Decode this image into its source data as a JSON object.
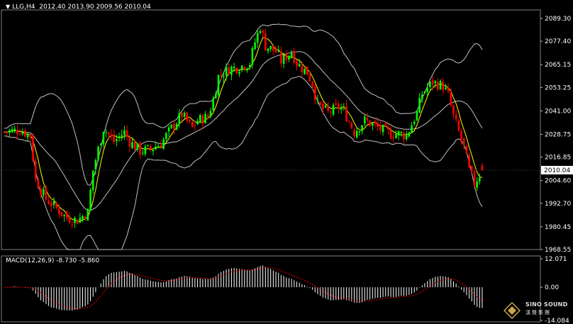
{
  "header": {
    "symbol": "LLG,H4",
    "open": "2012.40",
    "high": "2013.90",
    "low": "2009.56",
    "close": "2010.04"
  },
  "macd_header": {
    "label": "MACD(12,26,9)",
    "macd": "-8.730",
    "signal": "-5.860"
  },
  "logo": {
    "name": "SINO SOUND",
    "sub": "漢聲集團"
  },
  "colors": {
    "background": "#000000",
    "bull": "#00ff00",
    "bear": "#ff0000",
    "ma": "#ffff00",
    "band": "#c0c0c0",
    "signal": "#ff0000",
    "hist": "#ffffff"
  },
  "chart_data": [
    {
      "type": "candlestick",
      "title": "LLG,H4",
      "indicators": [
        "Bollinger Bands",
        "Moving Average"
      ],
      "y_ticks": [
        2089.3,
        2077.4,
        2065.15,
        2053.25,
        2041.0,
        2028.75,
        2016.85,
        2004.6,
        1992.7,
        1980.45,
        1968.55
      ],
      "y_tick_labels": [
        "2089.30",
        "2077.40",
        "2065.15",
        "2053.25",
        "2041.00",
        "2028.75",
        "2016.85",
        "2004.60",
        "1992.70",
        "1980.45",
        "1968.55"
      ],
      "ylim": [
        1968.55,
        2093.0
      ],
      "current_price": "2010.04",
      "close_path": [
        [
          0,
          2030
        ],
        [
          6,
          2031
        ],
        [
          10,
          2028
        ],
        [
          12,
          2005
        ],
        [
          16,
          1995
        ],
        [
          20,
          1990
        ],
        [
          24,
          1985
        ],
        [
          28,
          1984
        ],
        [
          32,
          1988
        ],
        [
          34,
          2010
        ],
        [
          38,
          2032
        ],
        [
          42,
          2025
        ],
        [
          46,
          2030
        ],
        [
          48,
          2025
        ],
        [
          52,
          2020
        ],
        [
          56,
          2021
        ],
        [
          60,
          2024
        ],
        [
          64,
          2032
        ],
        [
          68,
          2039
        ],
        [
          72,
          2032
        ],
        [
          74,
          2036
        ],
        [
          78,
          2038
        ],
        [
          80,
          2047
        ],
        [
          82,
          2059
        ],
        [
          86,
          2063
        ],
        [
          90,
          2064
        ],
        [
          94,
          2066
        ],
        [
          96,
          2077
        ],
        [
          98,
          2085
        ],
        [
          100,
          2075
        ],
        [
          104,
          2072
        ],
        [
          106,
          2067
        ],
        [
          110,
          2072
        ],
        [
          112,
          2066
        ],
        [
          116,
          2061
        ],
        [
          118,
          2055
        ],
        [
          120,
          2044
        ],
        [
          124,
          2040
        ],
        [
          128,
          2043
        ],
        [
          130,
          2041
        ],
        [
          134,
          2030
        ],
        [
          138,
          2036
        ],
        [
          142,
          2033
        ],
        [
          146,
          2030
        ],
        [
          148,
          2029
        ],
        [
          152,
          2029
        ],
        [
          154,
          2028
        ],
        [
          158,
          2040
        ],
        [
          160,
          2050
        ],
        [
          164,
          2056
        ],
        [
          168,
          2054
        ],
        [
          170,
          2049
        ],
        [
          172,
          2038
        ],
        [
          176,
          2022
        ],
        [
          178,
          2010
        ],
        [
          180,
          2003
        ],
        [
          183,
          2010
        ]
      ]
    },
    {
      "type": "bar",
      "title": "MACD(12,26,9)",
      "y_ticks": [
        12.071,
        0.0,
        -14.084
      ],
      "y_tick_labels": [
        "12.071",
        "0.00",
        "-14.084"
      ],
      "ylim": [
        -14.084,
        12.071
      ],
      "last_macd": -8.73,
      "last_signal": -5.86
    }
  ]
}
